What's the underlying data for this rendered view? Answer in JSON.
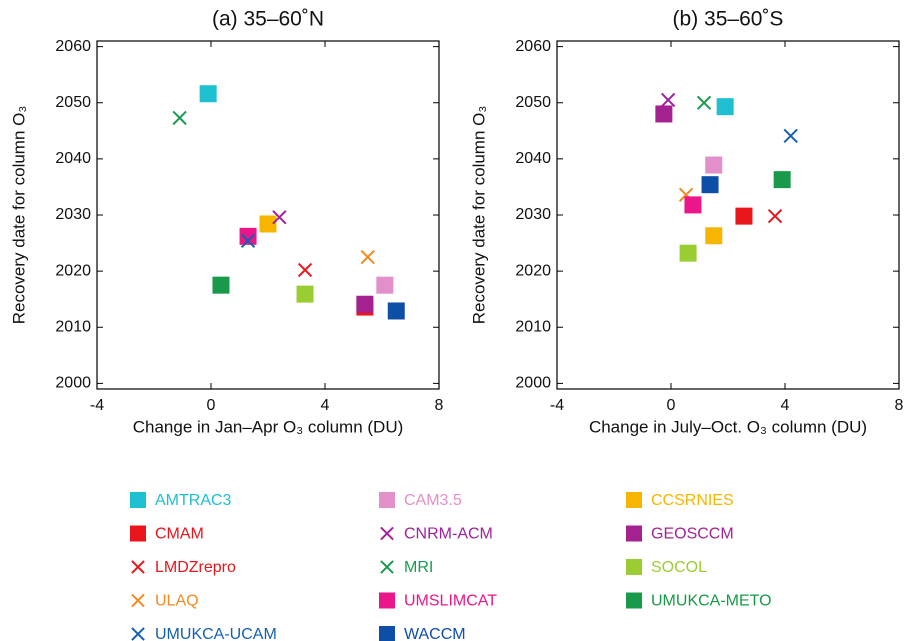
{
  "chart_data": [
    {
      "type": "scatter",
      "title": "(a) 35–60˚N",
      "x_label": "Change in Jan–Apr O₃ column (DU)",
      "y_label": "Recovery date for column O₃",
      "xlim": [
        -4,
        8
      ],
      "xticks": [
        -4,
        0,
        4,
        8
      ],
      "ylim": [
        1999,
        2061
      ],
      "yticks": [
        2000,
        2010,
        2020,
        2030,
        2040,
        2050,
        2060
      ],
      "series": [
        {
          "name": "AMTRAC3",
          "color": "#1ebfd0",
          "marker": "square",
          "x": [
            -0.1
          ],
          "values": [
            2051.6
          ]
        },
        {
          "name": "CAM3.5",
          "color": "#e38fc9",
          "marker": "square",
          "x": [
            6.1
          ],
          "values": [
            2017.5
          ]
        },
        {
          "name": "CCSRNIES",
          "color": "#f7b500",
          "marker": "square",
          "x": [
            2.0
          ],
          "values": [
            2028.4
          ]
        },
        {
          "name": "CMAM",
          "color": "#e8151b",
          "marker": "square",
          "x": [
            5.4
          ],
          "values": [
            2013.6
          ]
        },
        {
          "name": "CNRM-ACM",
          "color": "#a0229a",
          "marker": "x",
          "x": [
            2.4
          ],
          "values": [
            2029.6
          ]
        },
        {
          "name": "GEOSCCM",
          "color": "#a4228f",
          "marker": "square",
          "x": [
            5.4
          ],
          "values": [
            2014.1
          ]
        },
        {
          "name": "LMDZrepro",
          "color": "#e8151b",
          "marker": "x",
          "x": [
            3.3
          ],
          "values": [
            2020.2
          ]
        },
        {
          "name": "MRI",
          "color": "#1a9a50",
          "marker": "x",
          "x": [
            -1.1
          ],
          "values": [
            2047.3
          ]
        },
        {
          "name": "SOCOL",
          "color": "#9acd32",
          "marker": "square",
          "x": [
            3.3
          ],
          "values": [
            2015.9
          ]
        },
        {
          "name": "ULAQ",
          "color": "#f08a24",
          "marker": "x",
          "x": [
            5.5
          ],
          "values": [
            2022.5
          ]
        },
        {
          "name": "UMSLIMCAT",
          "color": "#ea168a",
          "marker": "square",
          "x": [
            1.3
          ],
          "values": [
            2026.2
          ]
        },
        {
          "name": "UMUKCA-METO",
          "color": "#189a4a",
          "marker": "square",
          "x": [
            0.35
          ],
          "values": [
            2017.5
          ]
        },
        {
          "name": "UMUKCA-UCAM",
          "color": "#1560b0",
          "marker": "x",
          "x": [
            1.3
          ],
          "values": [
            2025.4
          ]
        },
        {
          "name": "WACCM",
          "color": "#0d4ea6",
          "marker": "square",
          "x": [
            6.5
          ],
          "values": [
            2012.9
          ]
        }
      ]
    },
    {
      "type": "scatter",
      "title": "(b) 35–60˚S",
      "x_label": "Change in July–Oct. O₃ column (DU)",
      "y_label": "Recovery date for column O₃",
      "xlim": [
        -4,
        8
      ],
      "xticks": [
        -4,
        0,
        4,
        8
      ],
      "ylim": [
        1999,
        2061
      ],
      "yticks": [
        2000,
        2010,
        2020,
        2030,
        2040,
        2050,
        2060
      ],
      "series": [
        {
          "name": "AMTRAC3",
          "color": "#1ebfd0",
          "marker": "square",
          "x": [
            1.9
          ],
          "values": [
            2049.3
          ]
        },
        {
          "name": "CAM3.5",
          "color": "#e38fc9",
          "marker": "square",
          "x": [
            1.5
          ],
          "values": [
            2038.9
          ]
        },
        {
          "name": "CCSRNIES",
          "color": "#f7b500",
          "marker": "square",
          "x": [
            1.5
          ],
          "values": [
            2026.3
          ]
        },
        {
          "name": "CMAM",
          "color": "#e8151b",
          "marker": "square",
          "x": [
            2.56
          ],
          "values": [
            2029.8
          ]
        },
        {
          "name": "CNRM-ACM",
          "color": "#a0229a",
          "marker": "x",
          "x": [
            -0.1
          ],
          "values": [
            2050.5
          ]
        },
        {
          "name": "GEOSCCM",
          "color": "#a4228f",
          "marker": "square",
          "x": [
            -0.25
          ],
          "values": [
            2048.0
          ]
        },
        {
          "name": "LMDZrepro",
          "color": "#e8151b",
          "marker": "x",
          "x": [
            3.65
          ],
          "values": [
            2029.8
          ]
        },
        {
          "name": "MRI",
          "color": "#1a9a50",
          "marker": "x",
          "x": [
            1.16
          ],
          "values": [
            2050.0
          ]
        },
        {
          "name": "SOCOL",
          "color": "#9acd32",
          "marker": "square",
          "x": [
            0.6
          ],
          "values": [
            2023.2
          ]
        },
        {
          "name": "ULAQ",
          "color": "#f08a24",
          "marker": "x",
          "x": [
            0.53
          ],
          "values": [
            2033.6
          ]
        },
        {
          "name": "UMSLIMCAT",
          "color": "#ea168a",
          "marker": "square",
          "x": [
            0.77
          ],
          "values": [
            2031.8
          ]
        },
        {
          "name": "UMUKCA-METO",
          "color": "#189a4a",
          "marker": "square",
          "x": [
            3.9
          ],
          "values": [
            2036.3
          ]
        },
        {
          "name": "UMUKCA-UCAM",
          "color": "#1560b0",
          "marker": "x",
          "x": [
            4.2
          ],
          "values": [
            2044.1
          ]
        },
        {
          "name": "WACCM",
          "color": "#0d4ea6",
          "marker": "square",
          "x": [
            1.37
          ],
          "values": [
            2035.4
          ]
        }
      ]
    }
  ]
}
